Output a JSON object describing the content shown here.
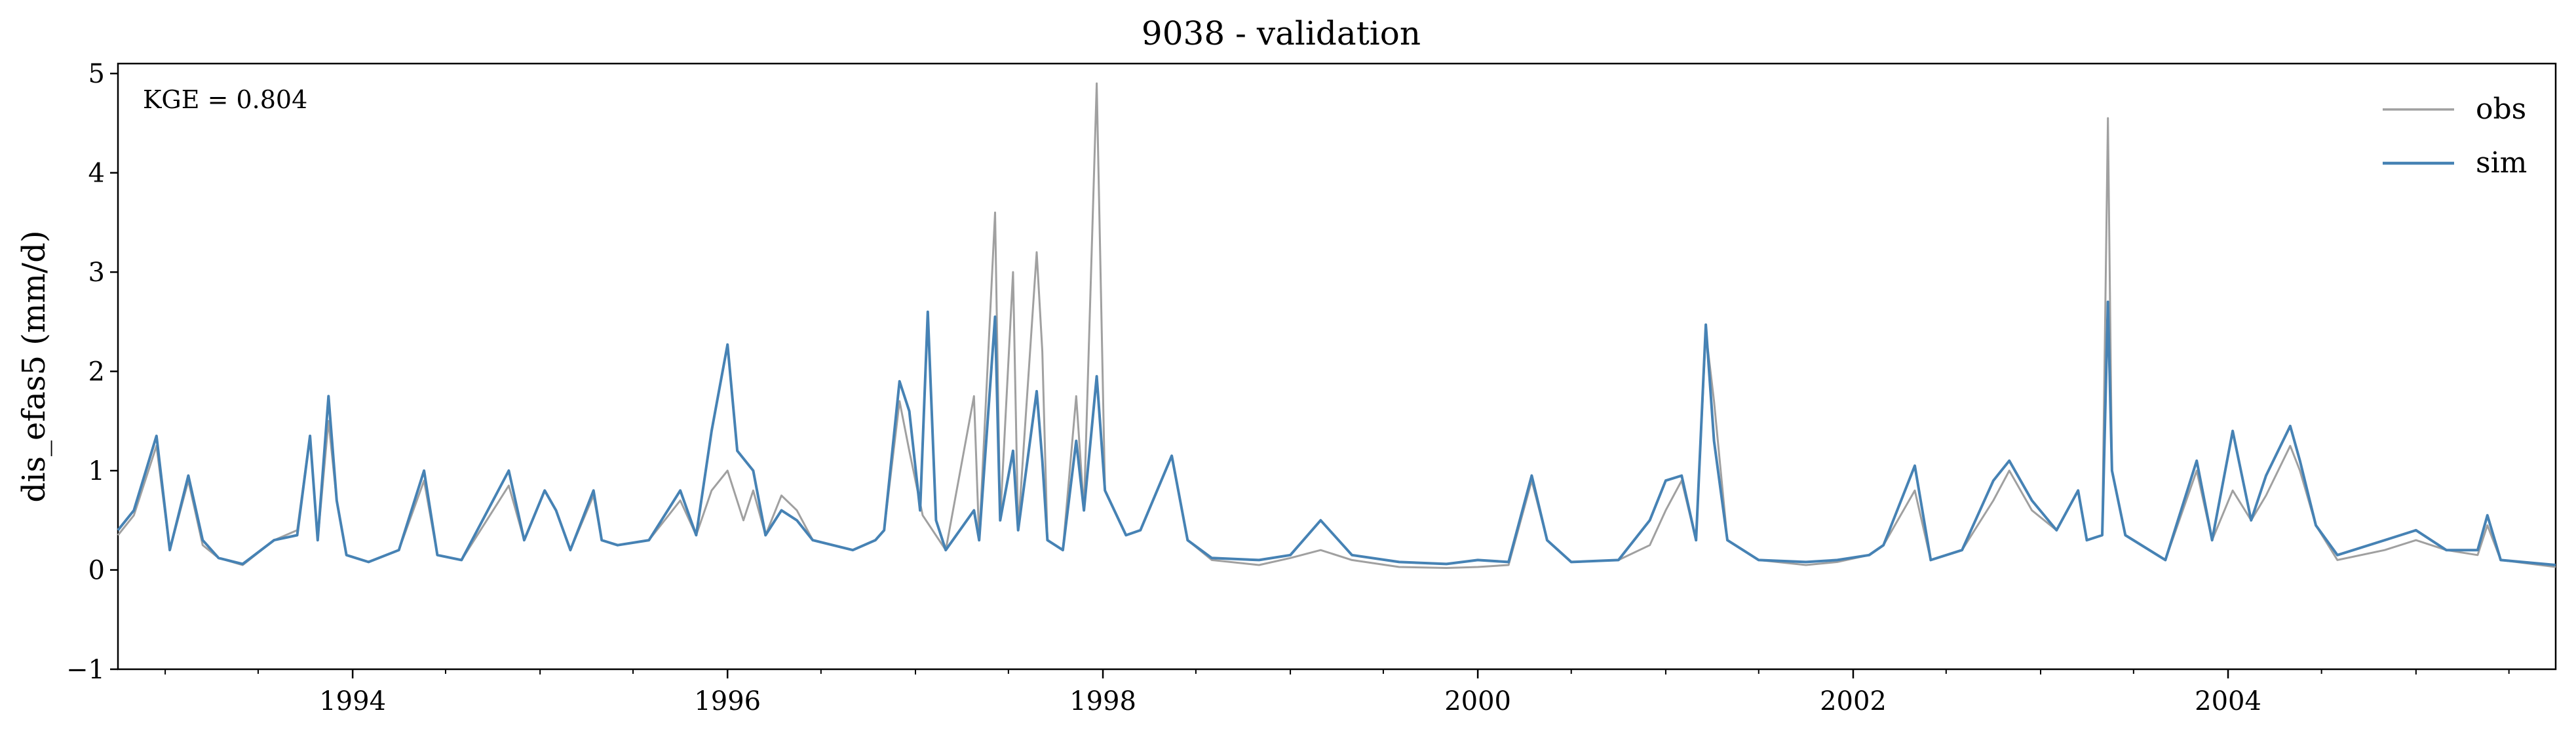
{
  "chart_data": {
    "type": "line",
    "title": "9038 - validation",
    "xlabel": "",
    "ylabel": "dis_efas5 (mm/d)",
    "annotation": "KGE = 0.804",
    "xlim": [
      "1992-10-01",
      "2005-09-30"
    ],
    "ylim": [
      -1,
      5.1
    ],
    "y_ticks": [
      -1,
      0,
      1,
      2,
      3,
      4,
      5
    ],
    "y_tick_labels": [
      "−1",
      "0",
      "1",
      "2",
      "3",
      "4",
      "5"
    ],
    "x_ticks": [
      "1994-01-01",
      "1996-01-01",
      "1998-01-01",
      "2000-01-01",
      "2002-01-01",
      "2004-01-01"
    ],
    "x_tick_labels": [
      "1994",
      "1996",
      "1998",
      "2000",
      "2002",
      "2004"
    ],
    "grid": false,
    "legend": {
      "position": "top-right",
      "entries": [
        "obs",
        "sim"
      ]
    },
    "series": [
      {
        "name": "obs",
        "color": "#a0a0a0",
        "points": [
          [
            "1992-10-01",
            0.35
          ],
          [
            "1992-11-01",
            0.55
          ],
          [
            "1992-12-15",
            1.25
          ],
          [
            "1993-01-10",
            0.2
          ],
          [
            "1993-02-15",
            0.9
          ],
          [
            "1993-03-15",
            0.25
          ],
          [
            "1993-04-15",
            0.12
          ],
          [
            "1993-06-01",
            0.05
          ],
          [
            "1993-08-01",
            0.3
          ],
          [
            "1993-09-15",
            0.4
          ],
          [
            "1993-10-10",
            1.35
          ],
          [
            "1993-10-25",
            0.3
          ],
          [
            "1993-11-15",
            1.5
          ],
          [
            "1993-12-01",
            0.7
          ],
          [
            "1993-12-20",
            0.15
          ],
          [
            "1994-02-01",
            0.08
          ],
          [
            "1994-04-01",
            0.2
          ],
          [
            "1994-05-20",
            0.9
          ],
          [
            "1994-06-15",
            0.15
          ],
          [
            "1994-08-01",
            0.1
          ],
          [
            "1994-11-01",
            0.85
          ],
          [
            "1994-12-01",
            0.3
          ],
          [
            "1995-01-10",
            0.8
          ],
          [
            "1995-02-01",
            0.6
          ],
          [
            "1995-03-01",
            0.2
          ],
          [
            "1995-04-15",
            0.75
          ],
          [
            "1995-05-01",
            0.3
          ],
          [
            "1995-06-01",
            0.25
          ],
          [
            "1995-08-01",
            0.3
          ],
          [
            "1995-10-01",
            0.7
          ],
          [
            "1995-11-01",
            0.35
          ],
          [
            "1995-12-01",
            0.8
          ],
          [
            "1996-01-01",
            1.0
          ],
          [
            "1996-02-01",
            0.5
          ],
          [
            "1996-02-20",
            0.8
          ],
          [
            "1996-03-15",
            0.35
          ],
          [
            "1996-04-15",
            0.75
          ],
          [
            "1996-05-15",
            0.6
          ],
          [
            "1996-06-15",
            0.3
          ],
          [
            "1996-09-01",
            0.2
          ],
          [
            "1996-10-15",
            0.3
          ],
          [
            "1996-11-01",
            0.4
          ],
          [
            "1996-12-01",
            1.7
          ],
          [
            "1996-12-20",
            1.2
          ],
          [
            "1997-01-15",
            0.55
          ],
          [
            "1997-03-01",
            0.2
          ],
          [
            "1997-04-25",
            1.75
          ],
          [
            "1997-05-05",
            0.3
          ],
          [
            "1997-06-05",
            3.6
          ],
          [
            "1997-06-15",
            0.5
          ],
          [
            "1997-07-10",
            3.0
          ],
          [
            "1997-07-20",
            0.4
          ],
          [
            "1997-08-25",
            3.2
          ],
          [
            "1997-09-05",
            2.2
          ],
          [
            "1997-09-15",
            0.3
          ],
          [
            "1997-10-15",
            0.2
          ],
          [
            "1997-11-10",
            1.75
          ],
          [
            "1997-11-25",
            0.6
          ],
          [
            "1997-12-20",
            4.9
          ],
          [
            "1998-01-05",
            0.8
          ],
          [
            "1998-02-15",
            0.35
          ],
          [
            "1998-03-15",
            0.4
          ],
          [
            "1998-05-15",
            1.15
          ],
          [
            "1998-06-15",
            0.3
          ],
          [
            "1998-08-01",
            0.1
          ],
          [
            "1998-11-01",
            0.05
          ],
          [
            "1999-01-01",
            0.12
          ],
          [
            "1999-03-01",
            0.2
          ],
          [
            "1999-05-01",
            0.1
          ],
          [
            "1999-08-01",
            0.03
          ],
          [
            "1999-11-01",
            0.02
          ],
          [
            "2000-01-01",
            0.03
          ],
          [
            "2000-03-01",
            0.05
          ],
          [
            "2000-04-15",
            0.9
          ],
          [
            "2000-05-15",
            0.3
          ],
          [
            "2000-07-01",
            0.08
          ],
          [
            "2000-10-01",
            0.1
          ],
          [
            "2000-12-01",
            0.25
          ],
          [
            "2001-01-01",
            0.6
          ],
          [
            "2001-02-01",
            0.9
          ],
          [
            "2001-03-01",
            0.3
          ],
          [
            "2001-03-20",
            2.4
          ],
          [
            "2001-04-05",
            1.7
          ],
          [
            "2001-05-01",
            0.3
          ],
          [
            "2001-07-01",
            0.1
          ],
          [
            "2001-10-01",
            0.05
          ],
          [
            "2001-12-01",
            0.08
          ],
          [
            "2002-02-01",
            0.15
          ],
          [
            "2002-03-01",
            0.25
          ],
          [
            "2002-05-01",
            0.8
          ],
          [
            "2002-06-01",
            0.1
          ],
          [
            "2002-08-01",
            0.2
          ],
          [
            "2002-10-01",
            0.7
          ],
          [
            "2002-11-01",
            1.0
          ],
          [
            "2002-12-15",
            0.6
          ],
          [
            "2003-02-01",
            0.4
          ],
          [
            "2003-03-15",
            0.8
          ],
          [
            "2003-04-01",
            0.3
          ],
          [
            "2003-05-01",
            0.35
          ],
          [
            "2003-05-12",
            4.55
          ],
          [
            "2003-05-20",
            1.0
          ],
          [
            "2003-06-15",
            0.35
          ],
          [
            "2003-09-01",
            0.1
          ],
          [
            "2003-11-01",
            1.0
          ],
          [
            "2003-12-01",
            0.3
          ],
          [
            "2004-01-10",
            0.8
          ],
          [
            "2004-02-15",
            0.5
          ],
          [
            "2004-03-15",
            0.75
          ],
          [
            "2004-05-01",
            1.25
          ],
          [
            "2004-05-20",
            1.0
          ],
          [
            "2004-06-20",
            0.45
          ],
          [
            "2004-08-01",
            0.1
          ],
          [
            "2004-11-01",
            0.2
          ],
          [
            "2005-01-01",
            0.3
          ],
          [
            "2005-03-01",
            0.2
          ],
          [
            "2005-05-01",
            0.15
          ],
          [
            "2005-05-20",
            0.45
          ],
          [
            "2005-06-15",
            0.1
          ],
          [
            "2005-09-30",
            0.03
          ]
        ]
      },
      {
        "name": "sim",
        "color": "#4682b4",
        "points": [
          [
            "1992-10-01",
            0.4
          ],
          [
            "1992-11-01",
            0.6
          ],
          [
            "1992-12-15",
            1.35
          ],
          [
            "1993-01-10",
            0.2
          ],
          [
            "1993-02-15",
            0.95
          ],
          [
            "1993-03-15",
            0.3
          ],
          [
            "1993-04-15",
            0.12
          ],
          [
            "1993-06-01",
            0.06
          ],
          [
            "1993-08-01",
            0.3
          ],
          [
            "1993-09-15",
            0.35
          ],
          [
            "1993-10-10",
            1.35
          ],
          [
            "1993-10-25",
            0.3
          ],
          [
            "1993-11-15",
            1.75
          ],
          [
            "1993-12-01",
            0.7
          ],
          [
            "1993-12-20",
            0.15
          ],
          [
            "1994-02-01",
            0.08
          ],
          [
            "1994-04-01",
            0.2
          ],
          [
            "1994-05-20",
            1.0
          ],
          [
            "1994-06-15",
            0.15
          ],
          [
            "1994-08-01",
            0.1
          ],
          [
            "1994-11-01",
            1.0
          ],
          [
            "1994-12-01",
            0.3
          ],
          [
            "1995-01-10",
            0.8
          ],
          [
            "1995-02-01",
            0.6
          ],
          [
            "1995-03-01",
            0.2
          ],
          [
            "1995-04-15",
            0.8
          ],
          [
            "1995-05-01",
            0.3
          ],
          [
            "1995-06-01",
            0.25
          ],
          [
            "1995-08-01",
            0.3
          ],
          [
            "1995-10-01",
            0.8
          ],
          [
            "1995-11-01",
            0.35
          ],
          [
            "1995-12-01",
            1.4
          ],
          [
            "1996-01-01",
            2.27
          ],
          [
            "1996-01-20",
            1.2
          ],
          [
            "1996-02-20",
            1.0
          ],
          [
            "1996-03-15",
            0.35
          ],
          [
            "1996-04-15",
            0.6
          ],
          [
            "1996-05-15",
            0.5
          ],
          [
            "1996-06-15",
            0.3
          ],
          [
            "1996-09-01",
            0.2
          ],
          [
            "1996-10-15",
            0.3
          ],
          [
            "1996-11-01",
            0.4
          ],
          [
            "1996-12-01",
            1.9
          ],
          [
            "1996-12-20",
            1.6
          ],
          [
            "1997-01-10",
            0.6
          ],
          [
            "1997-01-25",
            2.6
          ],
          [
            "1997-02-10",
            0.5
          ],
          [
            "1997-03-01",
            0.2
          ],
          [
            "1997-04-25",
            0.6
          ],
          [
            "1997-05-05",
            0.3
          ],
          [
            "1997-06-05",
            2.55
          ],
          [
            "1997-06-15",
            0.5
          ],
          [
            "1997-07-10",
            1.2
          ],
          [
            "1997-07-20",
            0.4
          ],
          [
            "1997-08-25",
            1.8
          ],
          [
            "1997-09-05",
            1.1
          ],
          [
            "1997-09-15",
            0.3
          ],
          [
            "1997-10-15",
            0.2
          ],
          [
            "1997-11-10",
            1.3
          ],
          [
            "1997-11-25",
            0.6
          ],
          [
            "1997-12-20",
            1.95
          ],
          [
            "1998-01-05",
            0.8
          ],
          [
            "1998-02-15",
            0.35
          ],
          [
            "1998-03-15",
            0.4
          ],
          [
            "1998-05-15",
            1.15
          ],
          [
            "1998-06-15",
            0.3
          ],
          [
            "1998-08-01",
            0.12
          ],
          [
            "1998-11-01",
            0.1
          ],
          [
            "1999-01-01",
            0.15
          ],
          [
            "1999-03-01",
            0.5
          ],
          [
            "1999-05-01",
            0.15
          ],
          [
            "1999-08-01",
            0.08
          ],
          [
            "1999-11-01",
            0.06
          ],
          [
            "2000-01-01",
            0.1
          ],
          [
            "2000-03-01",
            0.08
          ],
          [
            "2000-04-15",
            0.95
          ],
          [
            "2000-05-15",
            0.3
          ],
          [
            "2000-07-01",
            0.08
          ],
          [
            "2000-10-01",
            0.1
          ],
          [
            "2000-12-01",
            0.5
          ],
          [
            "2001-01-01",
            0.9
          ],
          [
            "2001-02-01",
            0.95
          ],
          [
            "2001-03-01",
            0.3
          ],
          [
            "2001-03-20",
            2.47
          ],
          [
            "2001-04-05",
            1.3
          ],
          [
            "2001-05-01",
            0.3
          ],
          [
            "2001-07-01",
            0.1
          ],
          [
            "2001-10-01",
            0.08
          ],
          [
            "2001-12-01",
            0.1
          ],
          [
            "2002-02-01",
            0.15
          ],
          [
            "2002-03-01",
            0.25
          ],
          [
            "2002-05-01",
            1.05
          ],
          [
            "2002-06-01",
            0.1
          ],
          [
            "2002-08-01",
            0.2
          ],
          [
            "2002-10-01",
            0.9
          ],
          [
            "2002-11-01",
            1.1
          ],
          [
            "2002-12-15",
            0.7
          ],
          [
            "2003-02-01",
            0.4
          ],
          [
            "2003-03-15",
            0.8
          ],
          [
            "2003-04-01",
            0.3
          ],
          [
            "2003-05-01",
            0.35
          ],
          [
            "2003-05-12",
            2.7
          ],
          [
            "2003-05-20",
            1.0
          ],
          [
            "2003-06-15",
            0.35
          ],
          [
            "2003-09-01",
            0.1
          ],
          [
            "2003-11-01",
            1.1
          ],
          [
            "2003-12-01",
            0.3
          ],
          [
            "2004-01-10",
            1.4
          ],
          [
            "2004-02-15",
            0.5
          ],
          [
            "2004-03-15",
            0.95
          ],
          [
            "2004-05-01",
            1.45
          ],
          [
            "2004-05-20",
            1.1
          ],
          [
            "2004-06-20",
            0.45
          ],
          [
            "2004-08-01",
            0.15
          ],
          [
            "2004-11-01",
            0.3
          ],
          [
            "2005-01-01",
            0.4
          ],
          [
            "2005-03-01",
            0.2
          ],
          [
            "2005-05-01",
            0.2
          ],
          [
            "2005-05-20",
            0.55
          ],
          [
            "2005-06-15",
            0.1
          ],
          [
            "2005-09-30",
            0.05
          ]
        ]
      }
    ]
  }
}
